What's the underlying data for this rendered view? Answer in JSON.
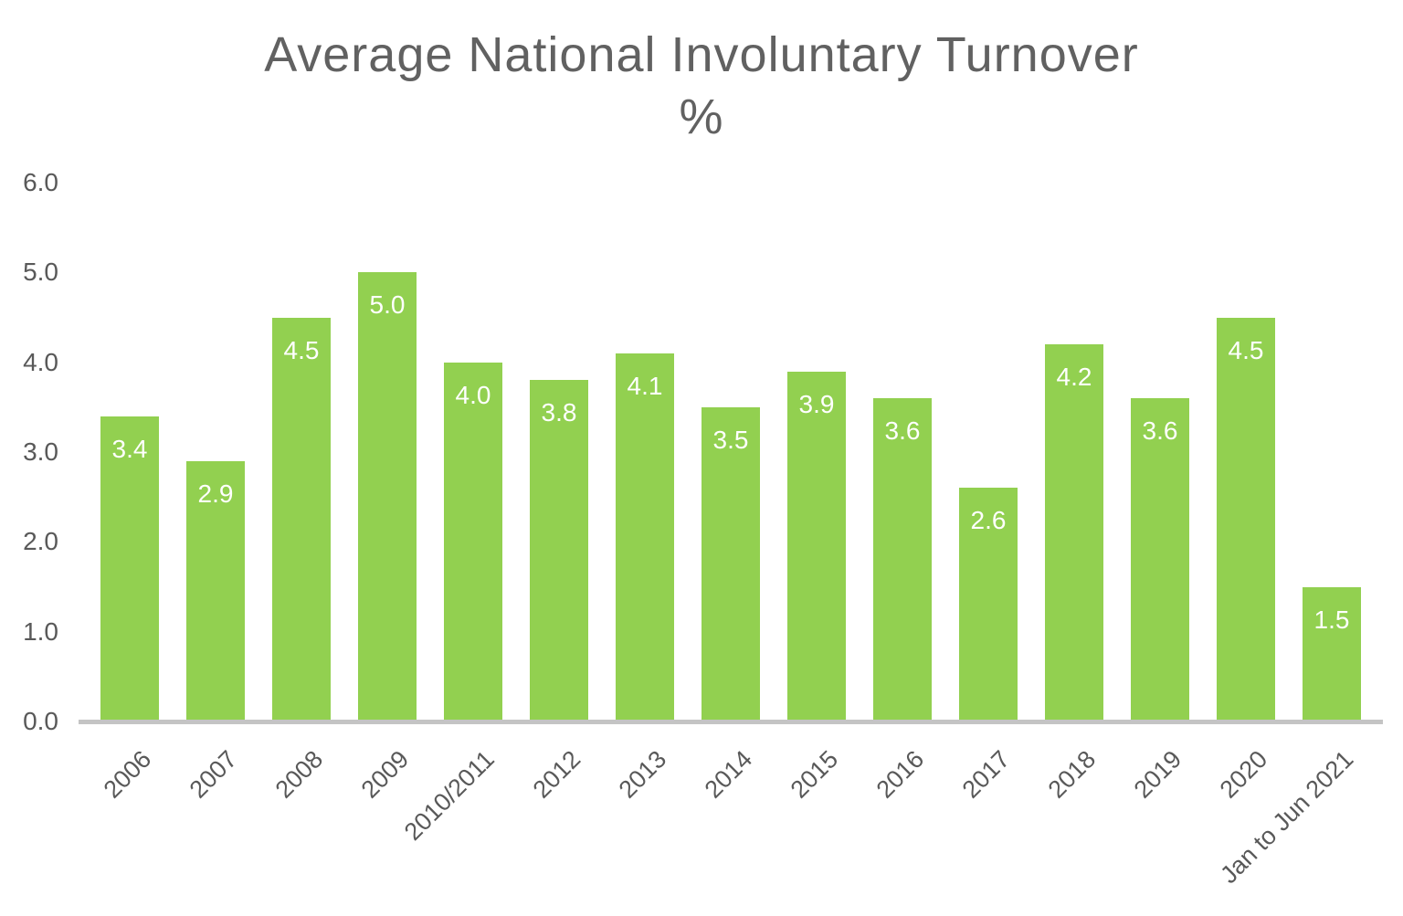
{
  "title": {
    "line1": "Average National Involuntary Turnover",
    "line2": "%"
  },
  "colors": {
    "background": "#ffffff",
    "bar": "#92d050",
    "title_text": "#616161",
    "axis_text": "#595959",
    "value_text": "#ffffff",
    "axis_line": "#c4c4c4"
  },
  "chart_data": {
    "type": "bar",
    "title": "Average National Involuntary Turnover %",
    "categories": [
      "2006",
      "2007",
      "2008",
      "2009",
      "2010/2011",
      "2012",
      "2013",
      "2014",
      "2015",
      "2016",
      "2017",
      "2018",
      "2019",
      "2020",
      "Jan to Jun 2021"
    ],
    "values": [
      3.4,
      2.9,
      4.5,
      5.0,
      4.0,
      3.8,
      4.1,
      3.5,
      3.9,
      3.6,
      2.6,
      4.2,
      3.6,
      4.5,
      1.5
    ],
    "value_labels": [
      "3.4",
      "2.9",
      "4.5",
      "5.0",
      "4.0",
      "3.8",
      "4.1",
      "3.5",
      "3.9",
      "3.6",
      "2.6",
      "4.2",
      "3.6",
      "4.5",
      "1.5"
    ],
    "value_label_position": "inside-top",
    "xlabel": "",
    "ylabel": "",
    "ylim": [
      0,
      6
    ],
    "yticks": [
      "0.0",
      "1.0",
      "2.0",
      "3.0",
      "4.0",
      "5.0",
      "6.0"
    ],
    "grid": false,
    "legend": "none",
    "x_tick_rotation_deg": 45,
    "bar_color": "#92d050"
  }
}
